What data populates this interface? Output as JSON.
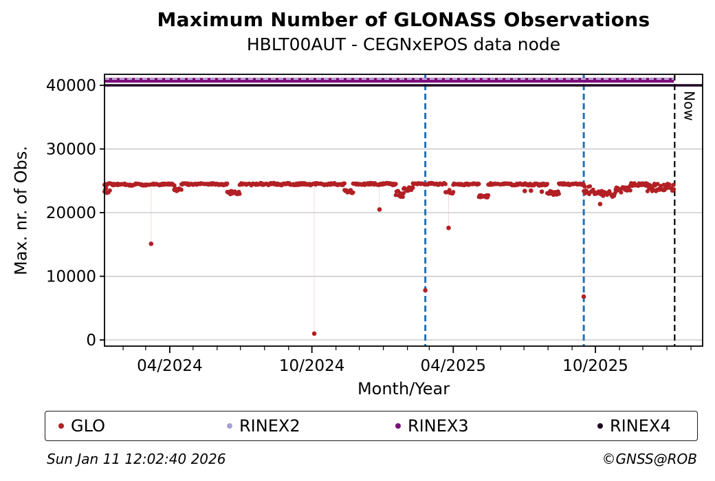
{
  "title": "Maximum Number of GLONASS Observations",
  "subtitle": "HBLT00AUT - CEGNxEPOS data node",
  "now_label": "Now",
  "footer": {
    "timestamp": "Sun Jan 11 12:02:40 2026",
    "credit": "©GNSS@ROB"
  },
  "legend": [
    {
      "label": "GLO",
      "color": "#b22025"
    },
    {
      "label": "RINEX2",
      "color": "#a3a3d2"
    },
    {
      "label": "RINEX3",
      "color": "#7d0e7d"
    },
    {
      "label": "RINEX4",
      "color": "#1c0021"
    }
  ],
  "chart_data": {
    "type": "scatter",
    "title": "Maximum Number of GLONASS Observations",
    "subtitle": "HBLT00AUT - CEGNxEPOS data node",
    "xlabel": "Month/Year",
    "ylabel": "Max. nr. of Obs.",
    "x_unit": "days since 2024-01-01",
    "xlim": [
      7,
      777
    ],
    "ylim": [
      -970,
      41730
    ],
    "grid": "horizontal-only",
    "grid_color": "#b3b3b3",
    "y_ticks": [
      0,
      10000,
      20000,
      30000,
      40000
    ],
    "x_major_ticks": [
      {
        "day": 91,
        "label": "04/2024"
      },
      {
        "day": 274,
        "label": "10/2024"
      },
      {
        "day": 456,
        "label": "04/2025"
      },
      {
        "day": 639,
        "label": "10/2025"
      }
    ],
    "x_minor_tick_days": [
      31,
      60,
      121,
      152,
      182,
      213,
      244,
      305,
      335,
      366,
      397,
      425,
      486,
      517,
      547,
      578,
      609,
      670,
      700,
      731,
      762
    ],
    "ref_lines": [
      {
        "name": "RINEX2",
        "value": 41000,
        "style": "dashed",
        "color": "#cdcde8",
        "width": 2,
        "d0": 7,
        "d1": 740,
        "full_width": false
      },
      {
        "name": "RINEX3",
        "value": 40800,
        "style": "solid",
        "color": "#7d0e7d",
        "width": 7,
        "d0": 7,
        "d1": 740,
        "full_width": false
      },
      {
        "name": "RINEX4",
        "value": 40000,
        "style": "solid",
        "color": "#1c0021",
        "width": 3.5,
        "d0": 7,
        "d1": 777,
        "full_width": true
      }
    ],
    "vlines": [
      {
        "day": 420,
        "color": "#2171b5",
        "style": "dashed",
        "width": 3,
        "label": ""
      },
      {
        "day": 624,
        "color": "#2171b5",
        "style": "dashed",
        "width": 3,
        "label": ""
      },
      {
        "day": 741,
        "color": "#000000",
        "style": "dashed",
        "width": 2.2,
        "label": "Now"
      }
    ],
    "glo": {
      "color": "#b22025",
      "marker_r": 3,
      "seed": 123456,
      "sampling": "daily",
      "band_segments": [
        {
          "d0": 7,
          "d1": 14,
          "base": 23400,
          "amp": 450,
          "wave": 0
        },
        {
          "d0": 7,
          "d1": 97,
          "base": 24430,
          "amp": 150,
          "wave": 60
        },
        {
          "d0": 97,
          "d1": 106,
          "base": 23550,
          "amp": 260,
          "wave": 0
        },
        {
          "d0": 106,
          "d1": 165,
          "base": 24470,
          "amp": 140,
          "wave": 60
        },
        {
          "d0": 165,
          "d1": 181,
          "base": 23150,
          "amp": 300,
          "wave": 0
        },
        {
          "d0": 181,
          "d1": 316,
          "base": 24480,
          "amp": 150,
          "wave": 60
        },
        {
          "d0": 316,
          "d1": 327,
          "base": 23300,
          "amp": 330,
          "wave": 0
        },
        {
          "d0": 327,
          "d1": 382,
          "base": 24490,
          "amp": 140,
          "wave": 50
        },
        {
          "d0": 382,
          "d1": 392,
          "base": 22950,
          "amp": 550,
          "wave": 0
        },
        {
          "d0": 392,
          "d1": 404,
          "base": 23700,
          "amp": 280,
          "wave": 0
        },
        {
          "d0": 404,
          "d1": 446,
          "base": 24520,
          "amp": 130,
          "wave": 50
        },
        {
          "d0": 446,
          "d1": 456,
          "base": 23250,
          "amp": 330,
          "wave": 0
        },
        {
          "d0": 456,
          "d1": 489,
          "base": 24480,
          "amp": 140,
          "wave": 50
        },
        {
          "d0": 489,
          "d1": 501,
          "base": 22650,
          "amp": 280,
          "wave": 0
        },
        {
          "d0": 501,
          "d1": 549,
          "base": 24460,
          "amp": 150,
          "wave": 50
        },
        {
          "d0": 549,
          "d1": 577,
          "base": 24420,
          "amp": 170,
          "wave": 0
        },
        {
          "d0": 577,
          "d1": 592,
          "base": 23100,
          "amp": 330,
          "wave": 0
        },
        {
          "d0": 592,
          "d1": 624,
          "base": 24480,
          "amp": 140,
          "wave": 50
        },
        {
          "d0": 624,
          "d1": 641,
          "base": 23500,
          "amp": 650,
          "wave": 0
        },
        {
          "d0": 641,
          "d1": 665,
          "base": 22950,
          "amp": 550,
          "wave": 0
        },
        {
          "d0": 665,
          "d1": 684,
          "base": 23600,
          "amp": 450,
          "wave": 0
        },
        {
          "d0": 684,
          "d1": 706,
          "base": 24420,
          "amp": 220,
          "wave": 0
        },
        {
          "d0": 706,
          "d1": 740,
          "base": 23950,
          "amp": 600,
          "wave": 0
        }
      ],
      "outliers": [
        {
          "day": 67,
          "value": 15100
        },
        {
          "day": 277,
          "value": 1000
        },
        {
          "day": 361,
          "value": 20500
        },
        {
          "day": 420,
          "value": 7800
        },
        {
          "day": 450,
          "value": 17600
        },
        {
          "day": 624,
          "value": 6800
        }
      ],
      "low_points": [
        {
          "day": 97,
          "value": 23650
        },
        {
          "day": 548,
          "value": 23400
        },
        {
          "day": 556,
          "value": 23450
        },
        {
          "day": 570,
          "value": 23300
        },
        {
          "day": 645,
          "value": 21350
        }
      ],
      "connector_color": "#e7baba"
    }
  }
}
